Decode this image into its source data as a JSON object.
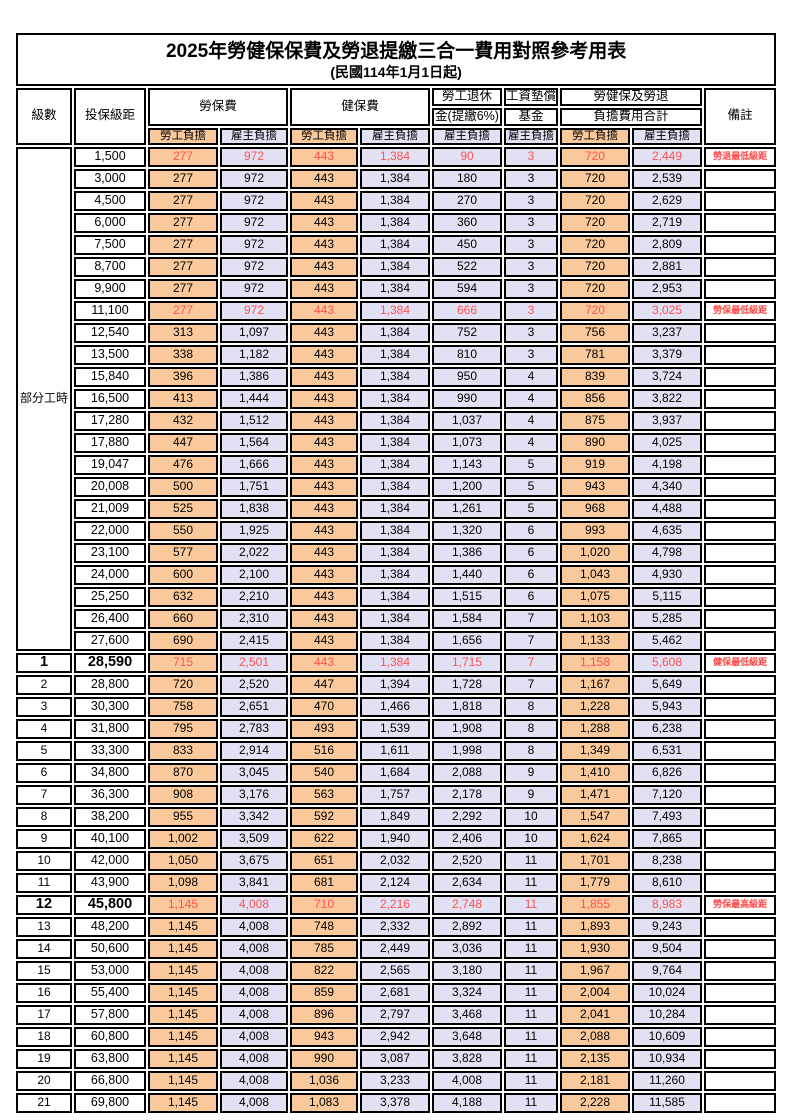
{
  "title": {
    "line1": "2025年勞健保保費及勞退提繳三合一費用對照參考用表",
    "line2": "(民國114年1月1日起)"
  },
  "colors": {
    "employee_column_bg": "#F9C99C",
    "employer_column_bg": "#E2E0F3",
    "highlight_text": "#FF5252",
    "note_text": "#FF4747",
    "border": "#000000"
  },
  "header": {
    "grade": "級數",
    "bracket": "投保級距",
    "note": "備註",
    "groups": [
      {
        "label": "勞保費",
        "sub": [
          "勞工負擔",
          "雇主負擔"
        ]
      },
      {
        "label": "健保費",
        "sub": [
          "勞工負擔",
          "雇主負擔"
        ]
      },
      {
        "label_line1": "勞工退休",
        "label_line2": "金(提繳6%)",
        "sub": [
          "雇主負擔"
        ]
      },
      {
        "label_line1": "工資墊償",
        "label_line2": "基金",
        "sub": [
          "雇主負擔"
        ]
      },
      {
        "label_line1": "勞健保及勞退",
        "label_line2": "負擔費用合計",
        "sub": [
          "勞工負擔",
          "雇主負擔"
        ]
      }
    ]
  },
  "table": {
    "part_time_label": "部分工時",
    "part_time_rows": [
      {
        "bracket": "1,500",
        "values": [
          "277",
          "972",
          "443",
          "1,384",
          "90",
          "3",
          "720",
          "2,449"
        ],
        "note": "勞退最低級距",
        "highlight": true
      },
      {
        "bracket": "3,000",
        "values": [
          "277",
          "972",
          "443",
          "1,384",
          "180",
          "3",
          "720",
          "2,539"
        ],
        "note": ""
      },
      {
        "bracket": "4,500",
        "values": [
          "277",
          "972",
          "443",
          "1,384",
          "270",
          "3",
          "720",
          "2,629"
        ],
        "note": ""
      },
      {
        "bracket": "6,000",
        "values": [
          "277",
          "972",
          "443",
          "1,384",
          "360",
          "3",
          "720",
          "2,719"
        ],
        "note": ""
      },
      {
        "bracket": "7,500",
        "values": [
          "277",
          "972",
          "443",
          "1,384",
          "450",
          "3",
          "720",
          "2,809"
        ],
        "note": ""
      },
      {
        "bracket": "8,700",
        "values": [
          "277",
          "972",
          "443",
          "1,384",
          "522",
          "3",
          "720",
          "2,881"
        ],
        "note": ""
      },
      {
        "bracket": "9,900",
        "values": [
          "277",
          "972",
          "443",
          "1,384",
          "594",
          "3",
          "720",
          "2,953"
        ],
        "note": ""
      },
      {
        "bracket": "11,100",
        "values": [
          "277",
          "972",
          "443",
          "1,384",
          "666",
          "3",
          "720",
          "3,025"
        ],
        "note": "勞保最低級距",
        "highlight": true
      },
      {
        "bracket": "12,540",
        "values": [
          "313",
          "1,097",
          "443",
          "1,384",
          "752",
          "3",
          "756",
          "3,237"
        ],
        "note": ""
      },
      {
        "bracket": "13,500",
        "values": [
          "338",
          "1,182",
          "443",
          "1,384",
          "810",
          "3",
          "781",
          "3,379"
        ],
        "note": ""
      },
      {
        "bracket": "15,840",
        "values": [
          "396",
          "1,386",
          "443",
          "1,384",
          "950",
          "4",
          "839",
          "3,724"
        ],
        "note": ""
      },
      {
        "bracket": "16,500",
        "values": [
          "413",
          "1,444",
          "443",
          "1,384",
          "990",
          "4",
          "856",
          "3,822"
        ],
        "note": ""
      },
      {
        "bracket": "17,280",
        "values": [
          "432",
          "1,512",
          "443",
          "1,384",
          "1,037",
          "4",
          "875",
          "3,937"
        ],
        "note": ""
      },
      {
        "bracket": "17,880",
        "values": [
          "447",
          "1,564",
          "443",
          "1,384",
          "1,073",
          "4",
          "890",
          "4,025"
        ],
        "note": ""
      },
      {
        "bracket": "19,047",
        "values": [
          "476",
          "1,666",
          "443",
          "1,384",
          "1,143",
          "5",
          "919",
          "4,198"
        ],
        "note": ""
      },
      {
        "bracket": "20,008",
        "values": [
          "500",
          "1,751",
          "443",
          "1,384",
          "1,200",
          "5",
          "943",
          "4,340"
        ],
        "note": ""
      },
      {
        "bracket": "21,009",
        "values": [
          "525",
          "1,838",
          "443",
          "1,384",
          "1,261",
          "5",
          "968",
          "4,488"
        ],
        "note": ""
      },
      {
        "bracket": "22,000",
        "values": [
          "550",
          "1,925",
          "443",
          "1,384",
          "1,320",
          "6",
          "993",
          "4,635"
        ],
        "note": ""
      },
      {
        "bracket": "23,100",
        "values": [
          "577",
          "2,022",
          "443",
          "1,384",
          "1,386",
          "6",
          "1,020",
          "4,798"
        ],
        "note": ""
      },
      {
        "bracket": "24,000",
        "values": [
          "600",
          "2,100",
          "443",
          "1,384",
          "1,440",
          "6",
          "1,043",
          "4,930"
        ],
        "note": ""
      },
      {
        "bracket": "25,250",
        "values": [
          "632",
          "2,210",
          "443",
          "1,384",
          "1,515",
          "6",
          "1,075",
          "5,115"
        ],
        "note": ""
      },
      {
        "bracket": "26,400",
        "values": [
          "660",
          "2,310",
          "443",
          "1,384",
          "1,584",
          "7",
          "1,103",
          "5,285"
        ],
        "note": ""
      },
      {
        "bracket": "27,600",
        "values": [
          "690",
          "2,415",
          "443",
          "1,384",
          "1,656",
          "7",
          "1,133",
          "5,462"
        ],
        "note": ""
      }
    ],
    "graded_rows": [
      {
        "grade": "1",
        "bracket": "28,590",
        "values": [
          "715",
          "2,501",
          "443",
          "1,384",
          "1,715",
          "7",
          "1,158",
          "5,608"
        ],
        "note": "健保最低級距",
        "highlight": true,
        "emphasize": true
      },
      {
        "grade": "2",
        "bracket": "28,800",
        "values": [
          "720",
          "2,520",
          "447",
          "1,394",
          "1,728",
          "7",
          "1,167",
          "5,649"
        ],
        "note": ""
      },
      {
        "grade": "3",
        "bracket": "30,300",
        "values": [
          "758",
          "2,651",
          "470",
          "1,466",
          "1,818",
          "8",
          "1,228",
          "5,943"
        ],
        "note": ""
      },
      {
        "grade": "4",
        "bracket": "31,800",
        "values": [
          "795",
          "2,783",
          "493",
          "1,539",
          "1,908",
          "8",
          "1,288",
          "6,238"
        ],
        "note": ""
      },
      {
        "grade": "5",
        "bracket": "33,300",
        "values": [
          "833",
          "2,914",
          "516",
          "1,611",
          "1,998",
          "8",
          "1,349",
          "6,531"
        ],
        "note": ""
      },
      {
        "grade": "6",
        "bracket": "34,800",
        "values": [
          "870",
          "3,045",
          "540",
          "1,684",
          "2,088",
          "9",
          "1,410",
          "6,826"
        ],
        "note": ""
      },
      {
        "grade": "7",
        "bracket": "36,300",
        "values": [
          "908",
          "3,176",
          "563",
          "1,757",
          "2,178",
          "9",
          "1,471",
          "7,120"
        ],
        "note": ""
      },
      {
        "grade": "8",
        "bracket": "38,200",
        "values": [
          "955",
          "3,342",
          "592",
          "1,849",
          "2,292",
          "10",
          "1,547",
          "7,493"
        ],
        "note": ""
      },
      {
        "grade": "9",
        "bracket": "40,100",
        "values": [
          "1,002",
          "3,509",
          "622",
          "1,940",
          "2,406",
          "10",
          "1,624",
          "7,865"
        ],
        "note": ""
      },
      {
        "grade": "10",
        "bracket": "42,000",
        "values": [
          "1,050",
          "3,675",
          "651",
          "2,032",
          "2,520",
          "11",
          "1,701",
          "8,238"
        ],
        "note": ""
      },
      {
        "grade": "11",
        "bracket": "43,900",
        "values": [
          "1,098",
          "3,841",
          "681",
          "2,124",
          "2,634",
          "11",
          "1,779",
          "8,610"
        ],
        "note": ""
      },
      {
        "grade": "12",
        "bracket": "45,800",
        "values": [
          "1,145",
          "4,008",
          "710",
          "2,216",
          "2,748",
          "11",
          "1,855",
          "8,983"
        ],
        "note": "勞保最高級距",
        "highlight": true,
        "emphasize": true
      },
      {
        "grade": "13",
        "bracket": "48,200",
        "values": [
          "1,145",
          "4,008",
          "748",
          "2,332",
          "2,892",
          "11",
          "1,893",
          "9,243"
        ],
        "note": ""
      },
      {
        "grade": "14",
        "bracket": "50,600",
        "values": [
          "1,145",
          "4,008",
          "785",
          "2,449",
          "3,036",
          "11",
          "1,930",
          "9,504"
        ],
        "note": ""
      },
      {
        "grade": "15",
        "bracket": "53,000",
        "values": [
          "1,145",
          "4,008",
          "822",
          "2,565",
          "3,180",
          "11",
          "1,967",
          "9,764"
        ],
        "note": ""
      },
      {
        "grade": "16",
        "bracket": "55,400",
        "values": [
          "1,145",
          "4,008",
          "859",
          "2,681",
          "3,324",
          "11",
          "2,004",
          "10,024"
        ],
        "note": ""
      },
      {
        "grade": "17",
        "bracket": "57,800",
        "values": [
          "1,145",
          "4,008",
          "896",
          "2,797",
          "3,468",
          "11",
          "2,041",
          "10,284"
        ],
        "note": ""
      },
      {
        "grade": "18",
        "bracket": "60,800",
        "values": [
          "1,145",
          "4,008",
          "943",
          "2,942",
          "3,648",
          "11",
          "2,088",
          "10,609"
        ],
        "note": ""
      },
      {
        "grade": "19",
        "bracket": "63,800",
        "values": [
          "1,145",
          "4,008",
          "990",
          "3,087",
          "3,828",
          "11",
          "2,135",
          "10,934"
        ],
        "note": ""
      },
      {
        "grade": "20",
        "bracket": "66,800",
        "values": [
          "1,145",
          "4,008",
          "1,036",
          "3,233",
          "4,008",
          "11",
          "2,181",
          "11,260"
        ],
        "note": ""
      },
      {
        "grade": "21",
        "bracket": "69,800",
        "values": [
          "1,145",
          "4,008",
          "1,083",
          "3,378",
          "4,188",
          "11",
          "2,228",
          "11,585"
        ],
        "note": ""
      }
    ]
  }
}
